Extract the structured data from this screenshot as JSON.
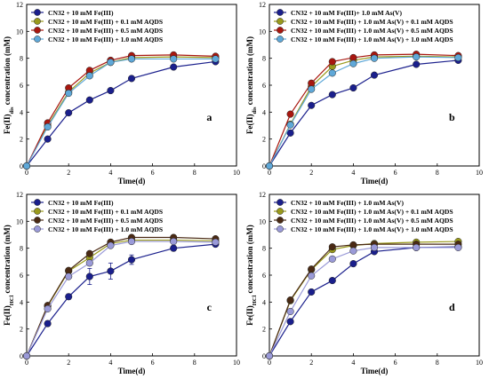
{
  "chart_data": [
    {
      "type": "line",
      "panel_label": "a",
      "xlabel": "Time(d)",
      "ylabel_main": "Fe(II)",
      "ylabel_sub": "dis",
      "ylabel_rest": " concentration (mM)",
      "xlim": [
        0,
        10
      ],
      "ylim": [
        0,
        12
      ],
      "xticks": [
        0,
        2,
        4,
        6,
        8,
        10
      ],
      "yticks": [
        0,
        2,
        4,
        6,
        8,
        10,
        12
      ],
      "legend_position": "top-left",
      "series": [
        {
          "name": "CN32 + 10 mM Fe(III)",
          "color": "#1a1f8c",
          "x": [
            0,
            1,
            2,
            3,
            4,
            5,
            7,
            9
          ],
          "y": [
            0,
            2.0,
            3.95,
            4.9,
            5.6,
            6.5,
            7.35,
            7.75
          ],
          "err": [
            0,
            0.1,
            0.1,
            0.1,
            0.1,
            0.1,
            0.1,
            0.1
          ]
        },
        {
          "name": "CN32 + 10 mM Fe(III) + 0.1 mM AQDS",
          "color": "#9a9a1c",
          "x": [
            0,
            1,
            2,
            3,
            4,
            5,
            7,
            9
          ],
          "y": [
            0,
            3.0,
            5.5,
            6.9,
            7.7,
            8.05,
            8.1,
            8.05
          ],
          "err": [
            0,
            0.1,
            0.1,
            0.1,
            0.2,
            0.1,
            0.1,
            0.1
          ]
        },
        {
          "name": "CN32 + 10 mM Fe(III) + 0.5 mM AQDS",
          "color": "#a8170f",
          "x": [
            0,
            1,
            2,
            3,
            4,
            5,
            7,
            9
          ],
          "y": [
            0,
            3.2,
            5.8,
            7.1,
            7.85,
            8.2,
            8.25,
            8.15
          ],
          "err": [
            0,
            0.1,
            0.1,
            0.1,
            0.1,
            0.1,
            0.1,
            0.1
          ]
        },
        {
          "name": "CN32 + 10 mM Fe(III) + 1.0 mM AQDS",
          "color": "#5fa8d8",
          "x": [
            0,
            1,
            2,
            3,
            4,
            5,
            7,
            9
          ],
          "y": [
            0,
            2.9,
            5.4,
            6.7,
            7.7,
            7.95,
            7.95,
            7.95
          ],
          "err": [
            0,
            0.1,
            0.1,
            0.1,
            0.1,
            0.1,
            0.1,
            0.1
          ]
        }
      ]
    },
    {
      "type": "line",
      "panel_label": "b",
      "xlabel": "Time(d)",
      "ylabel_main": "Fe(II)",
      "ylabel_sub": "dis",
      "ylabel_rest": " concentration (mM)",
      "xlim": [
        0,
        10
      ],
      "ylim": [
        0,
        12
      ],
      "xticks": [
        0,
        2,
        4,
        6,
        8,
        10
      ],
      "yticks": [
        0,
        2,
        4,
        6,
        8,
        10,
        12
      ],
      "legend_position": "top-left",
      "series": [
        {
          "name": "CN32 + 10 mM Fe(III)+ 1.0 mM As(V)",
          "color": "#1a1f8c",
          "x": [
            0,
            1,
            2,
            3,
            4,
            5,
            7,
            9
          ],
          "y": [
            0,
            2.45,
            4.5,
            5.3,
            5.8,
            6.75,
            7.55,
            7.85
          ],
          "err": [
            0,
            0.1,
            0.1,
            0.1,
            0.1,
            0.1,
            0.1,
            0.1
          ]
        },
        {
          "name": "CN32 + 10 mM Fe(III) + 1.0 mM As(V) + 0.1 mM AQDS",
          "color": "#9a9a1c",
          "x": [
            0,
            1,
            2,
            3,
            4,
            5,
            7,
            9
          ],
          "y": [
            0,
            3.1,
            5.9,
            7.4,
            7.85,
            8.1,
            8.15,
            8.1
          ],
          "err": [
            0,
            0.1,
            0.1,
            0.1,
            0.1,
            0.1,
            0.1,
            0.1
          ]
        },
        {
          "name": "CN32 + 10 mM Fe(III) + 1.0 mM As(V) + 0.5 mM AQDS",
          "color": "#a8170f",
          "x": [
            0,
            1,
            2,
            3,
            4,
            5,
            7,
            9
          ],
          "y": [
            0,
            3.85,
            6.15,
            7.75,
            8.05,
            8.25,
            8.3,
            8.2
          ],
          "err": [
            0,
            0.1,
            0.1,
            0.1,
            0.1,
            0.1,
            0.1,
            0.1
          ]
        },
        {
          "name": "CN32 + 10 mM Fe(III) + 1.0 mM As(V) + 1.0 mM AQDS",
          "color": "#5fa8d8",
          "x": [
            0,
            1,
            2,
            3,
            4,
            5,
            7,
            9
          ],
          "y": [
            0,
            3.05,
            5.7,
            6.9,
            7.6,
            8.0,
            8.1,
            8.05
          ],
          "err": [
            0,
            0.1,
            0.1,
            0.1,
            0.1,
            0.1,
            0.1,
            0.1
          ]
        }
      ]
    },
    {
      "type": "line",
      "panel_label": "c",
      "xlabel": "Time(d)",
      "ylabel_main": "Fe(II)",
      "ylabel_sub": "HCl",
      "ylabel_rest": " concentration (mM)",
      "xlim": [
        0,
        10
      ],
      "ylim": [
        0,
        12
      ],
      "xticks": [
        0,
        2,
        4,
        6,
        8,
        10
      ],
      "yticks": [
        0,
        2,
        4,
        6,
        8,
        10,
        12
      ],
      "legend_position": "top-left",
      "series": [
        {
          "name": "CN32 + 10 mM Fe(III)",
          "color": "#1a1f8c",
          "x": [
            0,
            1,
            2,
            3,
            4,
            5,
            7,
            9
          ],
          "y": [
            0,
            2.4,
            4.4,
            5.9,
            6.3,
            7.15,
            8.0,
            8.3
          ],
          "err": [
            0,
            0.2,
            0.2,
            0.6,
            0.6,
            0.35,
            0.2,
            0.15
          ]
        },
        {
          "name": "CN32 + 10 mM Fe(III) + 0.1 mM AQDS",
          "color": "#9a9a1c",
          "x": [
            0,
            1,
            2,
            3,
            4,
            5,
            7,
            9
          ],
          "y": [
            0,
            3.7,
            6.3,
            7.3,
            8.35,
            8.6,
            8.6,
            8.55
          ],
          "err": [
            0,
            0.1,
            0.1,
            0.2,
            0.2,
            0.2,
            0.1,
            0.1
          ]
        },
        {
          "name": "CN32 + 10 mM Fe(III) + 0.5 mM AQDS",
          "color": "#4a2a14",
          "x": [
            0,
            1,
            2,
            3,
            4,
            5,
            7,
            9
          ],
          "y": [
            0,
            3.75,
            6.35,
            7.6,
            8.45,
            8.8,
            8.8,
            8.7
          ],
          "err": [
            0,
            0.1,
            0.1,
            0.1,
            0.1,
            0.1,
            0.1,
            0.1
          ]
        },
        {
          "name": "CN32 + 10 mM Fe(III) + 1.0 mM AQDS",
          "color": "#9a9ad8",
          "x": [
            0,
            1,
            2,
            3,
            4,
            5,
            7,
            9
          ],
          "y": [
            0,
            3.5,
            5.9,
            6.9,
            8.2,
            8.5,
            8.5,
            8.45
          ],
          "err": [
            0,
            0.1,
            0.1,
            0.2,
            0.1,
            0.1,
            0.1,
            0.1
          ]
        }
      ]
    },
    {
      "type": "line",
      "panel_label": "d",
      "xlabel": "Time(d)",
      "ylabel_main": "Fe(II)",
      "ylabel_sub": "HCl",
      "ylabel_rest": " concentration (mM)",
      "xlim": [
        0,
        10
      ],
      "ylim": [
        0,
        12
      ],
      "xticks": [
        0,
        2,
        4,
        6,
        8,
        10
      ],
      "yticks": [
        0,
        2,
        4,
        6,
        8,
        10,
        12
      ],
      "legend_position": "top-left",
      "series": [
        {
          "name": "CN32 + 10 mM Fe(III) + 1.0 mM As(V)",
          "color": "#1a1f8c",
          "x": [
            0,
            1,
            2,
            3,
            4,
            5,
            7,
            9
          ],
          "y": [
            0,
            2.55,
            4.75,
            5.6,
            6.85,
            7.75,
            8.05,
            8.1
          ],
          "err": [
            0,
            0.1,
            0.1,
            0.1,
            0.1,
            0.1,
            0.1,
            0.1
          ]
        },
        {
          "name": "CN32 + 10 mM Fe(III) + 1.0 mM As(V) + 0.1 mM AQDS",
          "color": "#9a9a1c",
          "x": [
            0,
            1,
            2,
            3,
            4,
            5,
            7,
            9
          ],
          "y": [
            0,
            4.1,
            6.4,
            7.9,
            8.2,
            8.35,
            8.45,
            8.5
          ],
          "err": [
            0,
            0.1,
            0.1,
            0.1,
            0.1,
            0.1,
            0.1,
            0.1
          ]
        },
        {
          "name": "CN32 + 10 mM Fe(III) + 1.0 mM As(V) + 0.5 mM AQDS",
          "color": "#4a2a14",
          "x": [
            0,
            1,
            2,
            3,
            4,
            5,
            7,
            9
          ],
          "y": [
            0,
            4.15,
            6.45,
            8.1,
            8.25,
            8.3,
            8.3,
            8.3
          ],
          "err": [
            0,
            0.1,
            0.1,
            0.1,
            0.1,
            0.1,
            0.1,
            0.1
          ]
        },
        {
          "name": "CN32 + 10 mM Fe(III) + 1.0 mM As(V) + 1.0 mM AQDS",
          "color": "#9a9ad8",
          "x": [
            0,
            1,
            2,
            3,
            4,
            5,
            7,
            9
          ],
          "y": [
            0,
            3.3,
            5.95,
            7.2,
            7.8,
            8.05,
            8.05,
            8.05
          ],
          "err": [
            0,
            0.1,
            0.1,
            0.1,
            0.1,
            0.1,
            0.1,
            0.1
          ]
        }
      ]
    }
  ]
}
